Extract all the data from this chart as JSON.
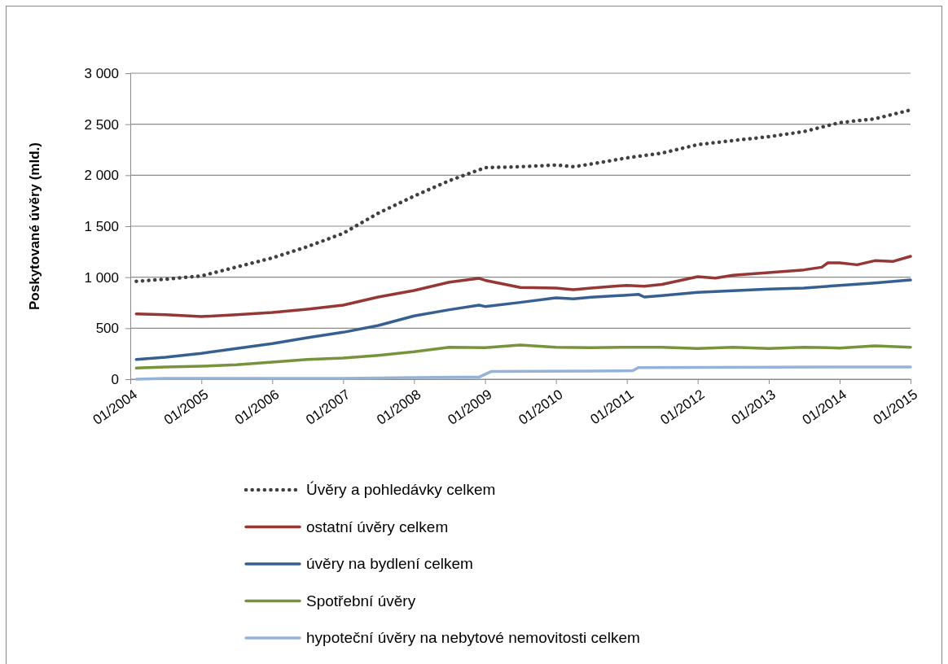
{
  "chart_data": {
    "type": "line",
    "ylabel": "Poskytované úvěry (mld.)",
    "xlim": [
      "2004-01",
      "2015-01"
    ],
    "xticks": [
      {
        "value": "2004-01",
        "label": "01/2004"
      },
      {
        "value": "2005-01",
        "label": "01/2005"
      },
      {
        "value": "2006-01",
        "label": "01/2006"
      },
      {
        "value": "2007-01",
        "label": "01/2007"
      },
      {
        "value": "2008-01",
        "label": "01/2008"
      },
      {
        "value": "2009-01",
        "label": "01/2009"
      },
      {
        "value": "2010-01",
        "label": "01/2010"
      },
      {
        "value": "2011-01",
        "label": "01/2011"
      },
      {
        "value": "2012-01",
        "label": "01/2012"
      },
      {
        "value": "2013-01",
        "label": "01/2013"
      },
      {
        "value": "2014-01",
        "label": "01/2014"
      },
      {
        "value": "2015-01",
        "label": "01/2015"
      }
    ],
    "ylim": [
      0,
      3000
    ],
    "yticks": [
      0,
      500,
      {
        "value": 1000,
        "label": "1 000"
      },
      {
        "value": 1500,
        "label": "1 500"
      },
      {
        "value": 2000,
        "label": "2 000"
      },
      {
        "value": 2500,
        "label": "2 500"
      },
      {
        "value": 3000,
        "label": "3 000"
      }
    ],
    "grid": "y",
    "legend": "bottom",
    "marker": "none",
    "series": [
      {
        "name": "Úvěry a pohledávky celkem",
        "color": "#404040",
        "line_style": "dotted",
        "x": [
          "2004-02",
          "2004-07",
          "2005-01",
          "2005-07",
          "2006-01",
          "2006-07",
          "2007-01",
          "2007-07",
          "2008-01",
          "2008-07",
          "2009-01",
          "2009-07",
          "2010-01",
          "2010-04",
          "2010-07",
          "2011-01",
          "2011-07",
          "2012-01",
          "2012-07",
          "2013-01",
          "2013-07",
          "2014-01",
          "2014-07",
          "2015-01"
        ],
        "values": [
          960,
          980,
          1013,
          1100,
          1189,
          1300,
          1430,
          1628,
          1795,
          1947,
          2074,
          2083,
          2100,
          2083,
          2110,
          2170,
          2217,
          2300,
          2340,
          2378,
          2428,
          2516,
          2553,
          2640
        ]
      },
      {
        "name": "ostatní úvěry celkem",
        "color": "#953735",
        "line_style": "solid",
        "x": [
          "2004-02",
          "2004-07",
          "2005-01",
          "2005-07",
          "2006-01",
          "2006-07",
          "2007-01",
          "2007-07",
          "2008-01",
          "2008-07",
          "2008-12",
          "2009-01",
          "2009-07",
          "2010-01",
          "2010-04",
          "2010-07",
          "2011-01",
          "2011-04",
          "2011-07",
          "2012-01",
          "2012-04",
          "2012-07",
          "2013-01",
          "2013-07",
          "2013-10",
          "2013-11",
          "2014-01",
          "2014-04",
          "2014-07",
          "2014-10",
          "2015-01"
        ],
        "values": [
          641,
          632,
          614,
          632,
          654,
          686,
          726,
          806,
          870,
          952,
          989,
          970,
          900,
          894,
          878,
          894,
          920,
          912,
          929,
          1005,
          992,
          1019,
          1045,
          1072,
          1098,
          1141,
          1141,
          1122,
          1162,
          1154,
          1205
        ]
      },
      {
        "name": "úvěry na bydlení celkem",
        "color": "#376092",
        "line_style": "solid",
        "x": [
          "2004-02",
          "2004-07",
          "2005-01",
          "2005-07",
          "2006-01",
          "2006-07",
          "2007-01",
          "2007-07",
          "2008-01",
          "2008-07",
          "2008-12",
          "2009-01",
          "2009-07",
          "2010-01",
          "2010-04",
          "2010-07",
          "2011-01",
          "2011-03",
          "2011-04",
          "2011-07",
          "2012-01",
          "2012-07",
          "2013-01",
          "2013-07",
          "2014-01",
          "2014-07",
          "2015-01"
        ],
        "values": [
          194,
          215,
          253,
          301,
          349,
          407,
          460,
          527,
          620,
          681,
          726,
          713,
          753,
          798,
          787,
          803,
          824,
          832,
          806,
          819,
          851,
          867,
          883,
          894,
          920,
          944,
          973
        ]
      },
      {
        "name": "Spotřební úvěry",
        "color": "#77933c",
        "line_style": "solid",
        "x": [
          "2004-02",
          "2004-07",
          "2005-01",
          "2005-07",
          "2006-01",
          "2006-07",
          "2007-01",
          "2007-07",
          "2008-01",
          "2008-07",
          "2009-01",
          "2009-07",
          "2010-01",
          "2010-07",
          "2011-01",
          "2011-07",
          "2012-01",
          "2012-07",
          "2013-01",
          "2013-07",
          "2014-01",
          "2014-07",
          "2015-01"
        ],
        "values": [
          109,
          120,
          128,
          141,
          168,
          194,
          207,
          234,
          269,
          314,
          310,
          335,
          314,
          309,
          314,
          314,
          301,
          314,
          301,
          314,
          306,
          327,
          314
        ]
      },
      {
        "name": "hypoteční úvěry na nebytové nemovitosti celkem",
        "color": "#95b3d7",
        "line_style": "solid",
        "x": [
          "2004-02",
          "2004-07",
          "2007-01",
          "2008-01",
          "2008-12",
          "2009-02",
          "2010-07",
          "2011-02",
          "2011-03",
          "2013-01",
          "2015-01"
        ],
        "values": [
          0,
          8,
          8,
          16,
          21,
          75,
          80,
          83,
          114,
          118,
          120
        ]
      }
    ]
  }
}
